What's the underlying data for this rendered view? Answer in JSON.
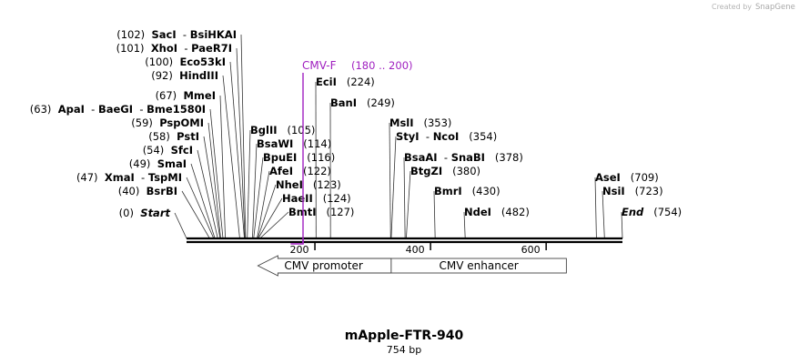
{
  "watermark": {
    "prefix": "Created by",
    "brand": "SnapGene"
  },
  "plasmid": {
    "name": "mApple-FTR-940",
    "length_label": "754 bp",
    "length": 754
  },
  "map": {
    "ticks": [
      200,
      400,
      600
    ]
  },
  "sites": [
    {
      "pos": 102,
      "name": "SacI",
      "alt": "BsiHKAI",
      "pos_label": "(102)"
    },
    {
      "pos": 101,
      "name": "XhoI",
      "alt": "PaeR7I",
      "pos_label": "(101)"
    },
    {
      "pos": 100,
      "name": "Eco53kI",
      "pos_label": "(100)"
    },
    {
      "pos": 92,
      "name": "HindIII",
      "pos_label": "(92)"
    },
    {
      "pos": 67,
      "name": "MmeI",
      "pos_label": "(67)"
    },
    {
      "pos": 63,
      "name": "ApaI",
      "alt": "BaeGI",
      "alt2": "Bme1580I",
      "pos_label": "(63)"
    },
    {
      "pos": 59,
      "name": "PspOMI",
      "pos_label": "(59)"
    },
    {
      "pos": 58,
      "name": "PstI",
      "pos_label": "(58)"
    },
    {
      "pos": 54,
      "name": "SfcI",
      "pos_label": "(54)"
    },
    {
      "pos": 49,
      "name": "SmaI",
      "pos_label": "(49)"
    },
    {
      "pos": 47,
      "name": "XmaI",
      "alt": "TspMI",
      "pos_label": "(47)"
    },
    {
      "pos": 40,
      "name": "BsrBI",
      "pos_label": "(40)"
    },
    {
      "pos": 0,
      "name": "Start",
      "pos_label": "(0)",
      "italic": true
    },
    {
      "pos": 105,
      "name": "BglII",
      "pos_label": "(105)"
    },
    {
      "pos": 114,
      "name": "BsaWI",
      "pos_label": "(114)"
    },
    {
      "pos": 116,
      "name": "BpuEI",
      "pos_label": "(116)"
    },
    {
      "pos": 122,
      "name": "AfeI",
      "pos_label": "(122)"
    },
    {
      "pos": 123,
      "name": "NheI",
      "pos_label": "(123)"
    },
    {
      "pos": 124,
      "name": "HaeII",
      "pos_label": "(124)"
    },
    {
      "pos": 127,
      "name": "BmtI",
      "pos_label": "(127)"
    },
    {
      "pos": 224,
      "name": "EciI",
      "pos_label": "(224)"
    },
    {
      "pos": 249,
      "name": "BanI",
      "pos_label": "(249)"
    },
    {
      "pos": 353,
      "name": "MslI",
      "pos_label": "(353)"
    },
    {
      "pos": 354,
      "name": "StyI",
      "alt": "NcoI",
      "pos_label": "(354)"
    },
    {
      "pos": 378,
      "name": "BsaAI",
      "alt": "SnaBI",
      "pos_label": "(378)"
    },
    {
      "pos": 380,
      "name": "BtgZI",
      "pos_label": "(380)"
    },
    {
      "pos": 430,
      "name": "BmrI",
      "pos_label": "(430)"
    },
    {
      "pos": 482,
      "name": "NdeI",
      "pos_label": "(482)"
    },
    {
      "pos": 709,
      "name": "AseI",
      "pos_label": "(709)"
    },
    {
      "pos": 723,
      "name": "NsiI",
      "pos_label": "(723)"
    },
    {
      "pos": 754,
      "name": "End",
      "pos_label": "(754)",
      "italic": true
    }
  ],
  "primer": {
    "name": "CMV-F",
    "range_label": "(180 .. 200)",
    "start": 180,
    "end": 200
  },
  "features": [
    {
      "name": "CMV promoter",
      "start": 158,
      "end": 354,
      "direction": "reverse"
    },
    {
      "name": "CMV enhancer",
      "start": 354,
      "end": 657
    }
  ]
}
